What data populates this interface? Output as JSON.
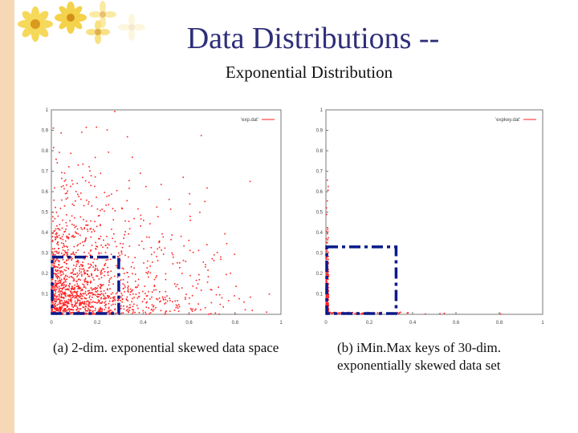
{
  "slide": {
    "title": "Data Distributions --",
    "subtitle": "Exponential Distribution"
  },
  "colors": {
    "point": "#ff2020",
    "box": "#0a1a8a",
    "title": "#2e2e78",
    "leftbar": "#f7d8b5"
  },
  "chart_data": [
    {
      "type": "scatter",
      "legend": "'exp.dat'",
      "legend_position": "top-right",
      "xlim": [
        0,
        1
      ],
      "ylim": [
        0,
        1
      ],
      "xticks": [
        "0",
        "0.2",
        "0.4",
        "0.6",
        "0.8",
        "1"
      ],
      "yticks": [
        "0.1",
        "0.2",
        "0.3",
        "0.4",
        "0.5",
        "0.6",
        "0.7",
        "0.8",
        "0.9",
        "1"
      ],
      "distribution": "2-dim exponential, dense near origin",
      "highlight_box": {
        "x": [
          0,
          0.29
        ],
        "y": [
          0,
          0.28
        ]
      },
      "caption": "(a) 2-dim. exponential skewed data space"
    },
    {
      "type": "scatter",
      "legend": "'expkey.dat'",
      "legend_position": "top-right",
      "xlim": [
        0,
        1
      ],
      "ylim": [
        0,
        1
      ],
      "xticks": [
        "0",
        "0.2",
        "0.4",
        "0.6",
        "0.8",
        "1"
      ],
      "yticks": [
        "0.1",
        "0.2",
        "0.3",
        "0.4",
        "0.5",
        "0.6",
        "0.7",
        "0.8",
        "0.9",
        "1"
      ],
      "distribution": "iMinMax keys concentrated along axes near origin",
      "highlight_box": {
        "x": [
          0,
          0.32
        ],
        "y": [
          0,
          0.33
        ]
      },
      "caption": "(b) iMin.Max keys of 30-dim. exponentially skewed data set"
    }
  ]
}
